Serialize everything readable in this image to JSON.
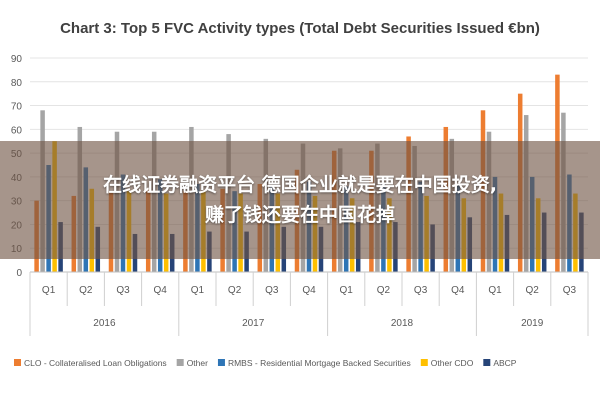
{
  "chart_data": {
    "type": "bar",
    "title": "Chart 3: Top 5 FVC Activity types (Total Debt Securities Issued €bn)",
    "ylim": [
      0,
      90
    ],
    "yticks": [
      0,
      10,
      20,
      30,
      40,
      50,
      60,
      70,
      80,
      90
    ],
    "grid": true,
    "legend_position": "bottom",
    "categories": [
      "Q1",
      "Q2",
      "Q3",
      "Q4",
      "Q1",
      "Q2",
      "Q3",
      "Q4",
      "Q1",
      "Q2",
      "Q3",
      "Q4",
      "Q1",
      "Q2",
      "Q3"
    ],
    "years": [
      {
        "label": "2016",
        "count": 4
      },
      {
        "label": "2017",
        "count": 4
      },
      {
        "label": "2018",
        "count": 4
      },
      {
        "label": "2019",
        "count": 3
      }
    ],
    "series": [
      {
        "name": "CLO - Collateralised Loan Obligations",
        "color": "#ed7d31",
        "values": [
          30,
          32,
          34,
          35,
          34,
          35,
          37,
          43,
          51,
          51,
          57,
          61,
          68,
          75,
          83
        ]
      },
      {
        "name": "Other",
        "color": "#a5a5a5",
        "values": [
          68,
          61,
          59,
          59,
          61,
          58,
          56,
          54,
          52,
          54,
          53,
          56,
          59,
          66,
          67
        ]
      },
      {
        "name": "RMBS - Residential Mortgage Backed Securities",
        "color": "#2e75b6",
        "values": [
          45,
          44,
          41,
          39,
          37,
          34,
          36,
          38,
          36,
          37,
          38,
          37,
          40,
          40,
          41
        ]
      },
      {
        "name": "Other CDO",
        "color": "#ffc000",
        "values": [
          55,
          35,
          34,
          33,
          34,
          33,
          33,
          32,
          31,
          31,
          32,
          31,
          33,
          31,
          33
        ]
      },
      {
        "name": "ABCP",
        "color": "#264478",
        "values": [
          21,
          19,
          16,
          16,
          17,
          17,
          19,
          19,
          21,
          21,
          20,
          23,
          24,
          25,
          25
        ]
      }
    ]
  },
  "overlay": {
    "line1": "在线证券融资平台 德国企业就是要在中国投资,",
    "line2": "赚了钱还要在中国花掉"
  }
}
